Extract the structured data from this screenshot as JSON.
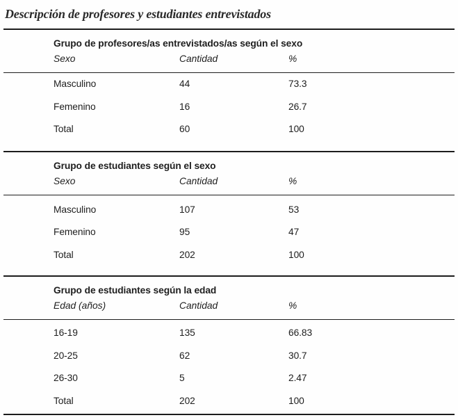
{
  "title": "Descripción de profesores y estudiantes entrevistados",
  "tables": [
    {
      "header": "Grupo de profesores/as entrevistados/as según el sexo",
      "columns": [
        "Sexo",
        "Cantidad",
        "%"
      ],
      "rows": [
        [
          "Masculino",
          "44",
          "73.3"
        ],
        [
          "Femenino",
          "16",
          "26.7"
        ],
        [
          "Total",
          "60",
          "100"
        ]
      ]
    },
    {
      "header": "Grupo de estudiantes según el sexo",
      "columns": [
        "Sexo",
        "Cantidad",
        "%"
      ],
      "rows": [
        [
          "Masculino",
          "107",
          "53"
        ],
        [
          "Femenino",
          "95",
          "47"
        ],
        [
          "Total",
          "202",
          "100"
        ]
      ]
    },
    {
      "header": "Grupo de estudiantes según la edad",
      "columns": [
        "Edad (años)",
        "Cantidad",
        "%"
      ],
      "rows": [
        [
          "16-19",
          "135",
          "66.83"
        ],
        [
          "20-25",
          "62",
          "30.7"
        ],
        [
          "26-30",
          "5",
          "2.47"
        ],
        [
          "Total",
          "202",
          "100"
        ]
      ]
    }
  ],
  "colors": {
    "text": "#1e1e1e",
    "rule": "#1c1c1c",
    "background": "#fefefe"
  }
}
